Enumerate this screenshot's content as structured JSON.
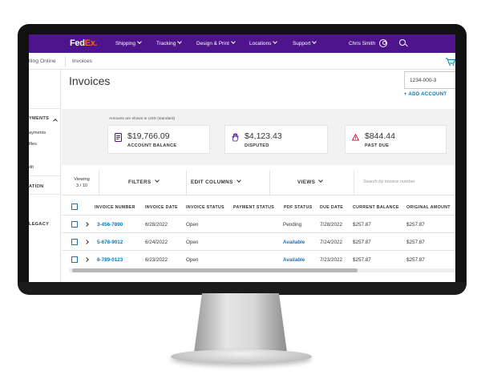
{
  "nav": {
    "logo_fed": "Fed",
    "logo_ex": "Ex.",
    "items": [
      "Shipping",
      "Tracking",
      "Design & Print",
      "Locations",
      "Support"
    ],
    "user_name": "Chris Smith"
  },
  "subnav": {
    "items": [
      "lling Online",
      "Invoices"
    ]
  },
  "sidebar": {
    "items": [
      "YMENTS",
      "ayments",
      "files",
      "dit",
      "ATION",
      "LEGACY"
    ]
  },
  "page": {
    "title": "Invoices",
    "account_number": "1234-000-3",
    "add_account": "+ ADD ACCOUNT",
    "amount_note": "Amounts are shown in USD (standard)"
  },
  "summary_cards": [
    {
      "value": "$19,766.09",
      "label": "ACCOUNT BALANCE",
      "icon": "document-icon"
    },
    {
      "value": "$4,123.43",
      "label": "DISPUTED",
      "icon": "hand-icon"
    },
    {
      "value": "$844.44",
      "label": "PAST DUE",
      "icon": "warning-icon"
    }
  ],
  "toolbar": {
    "viewing_label": "Viewing",
    "viewing_count": "3 / 10",
    "filters": "FILTERS",
    "edit_columns": "EDIT COLUMNS",
    "views": "VIEWS",
    "search_placeholder": "Search by invoice number"
  },
  "table": {
    "columns": [
      "INVOICE NUMBER",
      "INVOICE DATE",
      "INVOICE STATUS",
      "PAYMENT STATUS",
      "PDF STATUS",
      "DUE DATE",
      "CURRENT BALANCE",
      "ORIGINAL AMOUNT"
    ],
    "rows": [
      {
        "invoice_number": "3-456-7890",
        "invoice_date": "6/28/2022",
        "invoice_status": "Open",
        "payment_status": "",
        "pdf_status": "Pending",
        "due_date": "7/28/2022",
        "current_balance": "$257.87",
        "original_amount": "$257.87"
      },
      {
        "invoice_number": "5-678-9012",
        "invoice_date": "6/24/2022",
        "invoice_status": "Open",
        "payment_status": "",
        "pdf_status": "Available",
        "due_date": "7/24/2022",
        "current_balance": "$257.87",
        "original_amount": "$257.87"
      },
      {
        "invoice_number": "6-789-0123",
        "invoice_date": "6/23/2022",
        "invoice_status": "Open",
        "payment_status": "",
        "pdf_status": "Available",
        "due_date": "7/23/2022",
        "current_balance": "$257.87",
        "original_amount": "$257.87"
      }
    ]
  },
  "colors": {
    "brand_purple": "#4d148c",
    "brand_orange": "#ff6200",
    "link_blue": "#007ab7",
    "warning_red": "#de002e"
  }
}
